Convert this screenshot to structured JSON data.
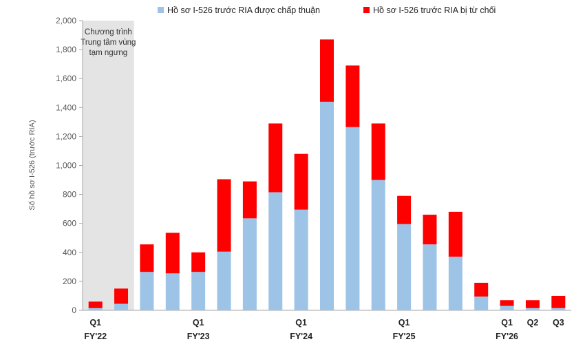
{
  "chart_data": {
    "type": "bar",
    "stacked": true,
    "ylabel": "Số hồ sơ I-526 (trước RIA)",
    "ylim": [
      0,
      2000
    ],
    "yticks": [
      0,
      200,
      400,
      600,
      800,
      1000,
      1200,
      1400,
      1600,
      1800,
      2000
    ],
    "ytick_labels": [
      "0",
      "200",
      "400",
      "600",
      "800",
      "1,000",
      "1,200",
      "1,400",
      "1,600",
      "1,800",
      "2,000"
    ],
    "grid": false,
    "legend_position": "top",
    "shaded_region": {
      "bars": [
        0,
        1
      ],
      "label_lines": [
        "Chương trình",
        "Trung tâm vùng",
        "tạm ngưng"
      ],
      "color": "#e4e4e4"
    },
    "category_labels": [
      {
        "bar": 0,
        "line1": "Q1",
        "line2": "FY'22"
      },
      {
        "bar": 4,
        "line1": "Q1",
        "line2": "FY'23"
      },
      {
        "bar": 8,
        "line1": "Q1",
        "line2": "FY'24"
      },
      {
        "bar": 12,
        "line1": "Q1",
        "line2": "FY'25"
      },
      {
        "bar": 16,
        "line1": "Q1",
        "line2": "FY'26"
      },
      {
        "bar": 17,
        "line1": "Q2",
        "line2": ""
      },
      {
        "bar": 18,
        "line1": "Q3",
        "line2": ""
      }
    ],
    "series": [
      {
        "name": "Hồ sơ I-526 trước RIA được chấp thuận",
        "color": "#9dc3e6",
        "values": [
          15,
          45,
          265,
          255,
          265,
          405,
          635,
          815,
          695,
          1440,
          1265,
          900,
          595,
          455,
          370,
          95,
          30,
          15,
          15
        ]
      },
      {
        "name": "Hồ sơ I-526 trước RIA bị từ chối",
        "color": "#ff0000",
        "values": [
          45,
          105,
          190,
          280,
          135,
          500,
          255,
          475,
          385,
          430,
          425,
          390,
          195,
          205,
          310,
          95,
          40,
          55,
          85
        ]
      }
    ]
  }
}
